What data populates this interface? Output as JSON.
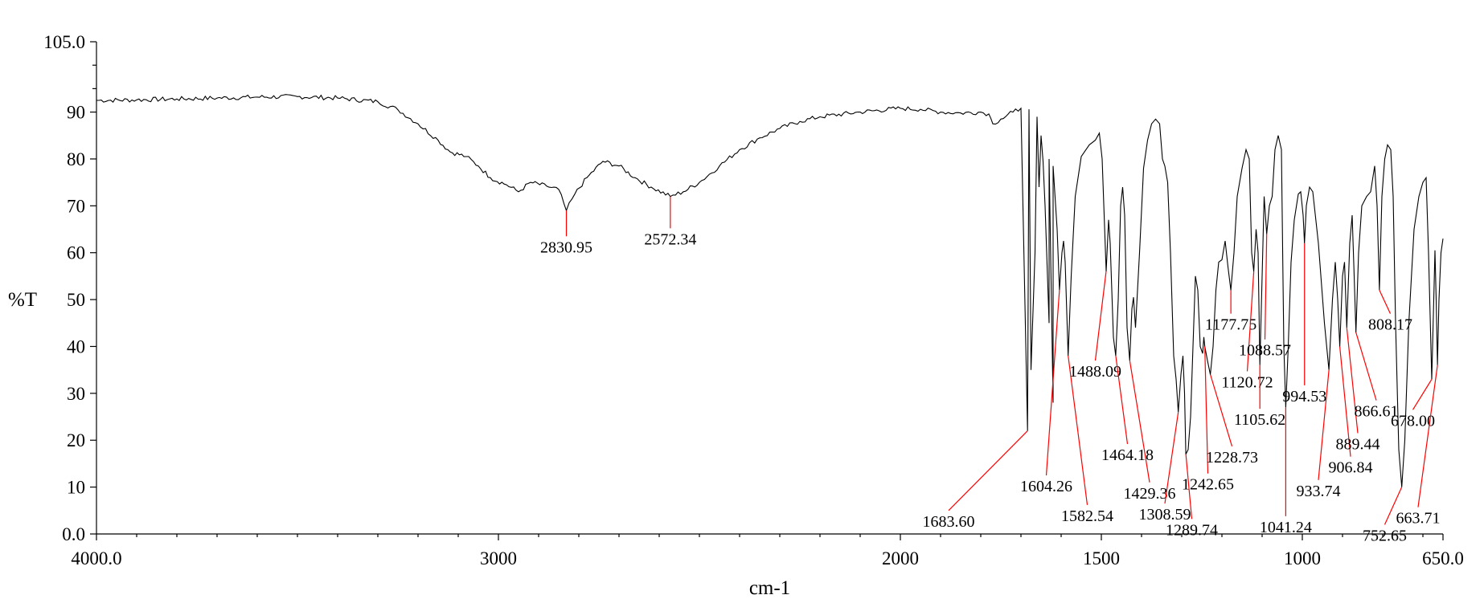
{
  "chart_data": {
    "type": "line",
    "xlabel": "cm-1",
    "ylabel": "%T",
    "xlim": [
      4000.0,
      650.0
    ],
    "ylim": [
      0.0,
      105.0
    ],
    "x_reversed": true,
    "grid": false,
    "x_ticks": [
      {
        "value": 4000,
        "label": "4000.0"
      },
      {
        "value": 3000,
        "label": "3000"
      },
      {
        "value": 2000,
        "label": "2000"
      },
      {
        "value": 1500,
        "label": "1500"
      },
      {
        "value": 1000,
        "label": "1000"
      },
      {
        "value": 650,
        "label": "650.0"
      }
    ],
    "y_ticks": [
      {
        "value": 0,
        "label": "0.0"
      },
      {
        "value": 10,
        "label": "10"
      },
      {
        "value": 20,
        "label": "20"
      },
      {
        "value": 30,
        "label": "30"
      },
      {
        "value": 40,
        "label": "40"
      },
      {
        "value": 50,
        "label": "50"
      },
      {
        "value": 60,
        "label": "60"
      },
      {
        "value": 70,
        "label": "70"
      },
      {
        "value": 80,
        "label": "80"
      },
      {
        "value": 90,
        "label": "90"
      },
      {
        "value": 105,
        "label": "105.0"
      }
    ],
    "colors": {
      "spectrum": "#000000",
      "annotation": "#ff0000"
    },
    "spectrum": [
      [
        4000,
        92.5
      ],
      [
        3900,
        92.6
      ],
      [
        3800,
        92.8
      ],
      [
        3700,
        93.0
      ],
      [
        3600,
        93.2
      ],
      [
        3500,
        93.3
      ],
      [
        3400,
        93.0
      ],
      [
        3300,
        92.2
      ],
      [
        3250,
        90.5
      ],
      [
        3200,
        87.5
      ],
      [
        3150,
        84.0
      ],
      [
        3120,
        81.5
      ],
      [
        3080,
        80.5
      ],
      [
        3050,
        78.5
      ],
      [
        3020,
        76.0
      ],
      [
        2980,
        74.5
      ],
      [
        2950,
        73.0
      ],
      [
        2920,
        75.0
      ],
      [
        2880,
        74.2
      ],
      [
        2850,
        73.5
      ],
      [
        2830.95,
        69.0
      ],
      [
        2810,
        72.5
      ],
      [
        2780,
        76.0
      ],
      [
        2740,
        79.5
      ],
      [
        2700,
        78.5
      ],
      [
        2660,
        76.0
      ],
      [
        2620,
        74.0
      ],
      [
        2572.34,
        72.0
      ],
      [
        2540,
        73.0
      ],
      [
        2500,
        75.0
      ],
      [
        2450,
        78.5
      ],
      [
        2400,
        82.0
      ],
      [
        2350,
        84.5
      ],
      [
        2300,
        86.5
      ],
      [
        2250,
        88.0
      ],
      [
        2200,
        89.0
      ],
      [
        2100,
        90.0
      ],
      [
        2000,
        90.8
      ],
      [
        1950,
        90.6
      ],
      [
        1900,
        90.0
      ],
      [
        1850,
        89.8
      ],
      [
        1800,
        90.0
      ],
      [
        1780,
        89.6
      ],
      [
        1770,
        87.5
      ],
      [
        1750,
        88.5
      ],
      [
        1720,
        90.0
      ],
      [
        1700,
        90.8
      ],
      [
        1680,
        90.6
      ],
      [
        1660,
        89.0
      ],
      [
        1650,
        85.0
      ],
      [
        1640,
        70.0
      ],
      [
        1630,
        45.0
      ],
      [
        1620,
        28.0
      ],
      [
        1683.6,
        22.0
      ]
    ],
    "spectrum_fingerprint": [
      [
        1683.6,
        22.0
      ],
      [
        1675,
        35.0
      ],
      [
        1665,
        60.0
      ],
      [
        1655,
        74.0
      ],
      [
        1645,
        79.5
      ],
      [
        1630,
        80.0
      ],
      [
        1620,
        78.5
      ],
      [
        1610,
        65.0
      ],
      [
        1604.26,
        52.0
      ],
      [
        1598,
        60.0
      ],
      [
        1594,
        62.5
      ],
      [
        1590,
        58.0
      ],
      [
        1582.54,
        38.0
      ],
      [
        1575,
        55.0
      ],
      [
        1565,
        72.0
      ],
      [
        1550,
        80.5
      ],
      [
        1530,
        83.0
      ],
      [
        1515,
        84.0
      ],
      [
        1505,
        85.5
      ],
      [
        1498,
        80.0
      ],
      [
        1488.09,
        56.0
      ],
      [
        1482,
        67.0
      ],
      [
        1478,
        62.0
      ],
      [
        1470,
        42.0
      ],
      [
        1464.18,
        38.0
      ],
      [
        1458,
        50.0
      ],
      [
        1452,
        70.0
      ],
      [
        1447,
        74.0
      ],
      [
        1442,
        68.0
      ],
      [
        1436,
        44.0
      ],
      [
        1429.36,
        37.0
      ],
      [
        1424,
        48.0
      ],
      [
        1420,
        50.5
      ],
      [
        1415,
        44.0
      ],
      [
        1405,
        60.0
      ],
      [
        1395,
        78.0
      ],
      [
        1385,
        84.0
      ],
      [
        1375,
        87.5
      ],
      [
        1365,
        88.5
      ],
      [
        1355,
        87.5
      ],
      [
        1348,
        80.0
      ],
      [
        1342,
        78.5
      ],
      [
        1335,
        75.0
      ],
      [
        1328,
        60.0
      ],
      [
        1320,
        38.0
      ],
      [
        1314,
        33.0
      ],
      [
        1308.59,
        26.0
      ],
      [
        1302,
        34.0
      ],
      [
        1297,
        38.0
      ],
      [
        1293,
        30.0
      ],
      [
        1289.74,
        17.0
      ],
      [
        1284,
        18.0
      ],
      [
        1278,
        25.0
      ],
      [
        1272,
        40.0
      ],
      [
        1266,
        55.0
      ],
      [
        1260,
        52.0
      ],
      [
        1254,
        40.0
      ],
      [
        1248,
        38.5
      ],
      [
        1245,
        42.0
      ],
      [
        1242.65,
        40.0
      ],
      [
        1236,
        37.0
      ],
      [
        1228.73,
        34.0
      ],
      [
        1222,
        40.0
      ],
      [
        1215,
        52.0
      ],
      [
        1208,
        58.0
      ],
      [
        1200,
        58.5
      ],
      [
        1192,
        62.5
      ],
      [
        1185,
        57.0
      ],
      [
        1177.75,
        52.0
      ],
      [
        1170,
        60.0
      ],
      [
        1162,
        72.0
      ],
      [
        1150,
        78.0
      ],
      [
        1140,
        82.0
      ],
      [
        1132,
        80.0
      ],
      [
        1126,
        60.0
      ],
      [
        1120.72,
        56.0
      ],
      [
        1115,
        65.0
      ],
      [
        1110,
        60.0
      ],
      [
        1105.62,
        36.0
      ],
      [
        1100,
        55.0
      ],
      [
        1095,
        72.0
      ],
      [
        1088.57,
        64.0
      ],
      [
        1082,
        70.0
      ],
      [
        1075,
        72.0
      ],
      [
        1068,
        82.0
      ],
      [
        1060,
        85.0
      ],
      [
        1052,
        82.0
      ],
      [
        1046,
        40.0
      ],
      [
        1041.24,
        27.0
      ],
      [
        1035,
        40.0
      ],
      [
        1028,
        58.0
      ],
      [
        1020,
        67.0
      ],
      [
        1010,
        72.5
      ],
      [
        1004,
        73.0
      ],
      [
        998,
        68.0
      ],
      [
        994.53,
        62.0
      ],
      [
        990,
        70.0
      ],
      [
        982,
        74.0
      ],
      [
        974,
        73.0
      ],
      [
        960,
        62.0
      ],
      [
        945,
        45.0
      ],
      [
        933.74,
        35.0
      ],
      [
        925,
        50.0
      ],
      [
        918,
        58.0
      ],
      [
        912,
        50.0
      ],
      [
        906.84,
        40.0
      ],
      [
        900,
        55.0
      ],
      [
        895,
        58.0
      ],
      [
        889.44,
        44.0
      ],
      [
        882,
        62.0
      ],
      [
        876,
        68.0
      ],
      [
        871,
        55.0
      ],
      [
        866.61,
        43.0
      ],
      [
        860,
        60.0
      ],
      [
        852,
        70.0
      ],
      [
        840,
        72.0
      ],
      [
        830,
        73.0
      ],
      [
        820,
        78.5
      ],
      [
        814,
        70.0
      ],
      [
        808.17,
        52.0
      ],
      [
        802,
        72.0
      ],
      [
        795,
        80.0
      ],
      [
        788,
        83.0
      ],
      [
        780,
        82.0
      ],
      [
        774,
        72.0
      ],
      [
        768,
        45.0
      ],
      [
        760,
        18.0
      ],
      [
        752.65,
        10.0
      ],
      [
        745,
        20.0
      ],
      [
        735,
        45.0
      ],
      [
        722,
        65.0
      ],
      [
        710,
        72.0
      ],
      [
        700,
        75.0
      ],
      [
        692,
        76.0
      ],
      [
        686,
        60.0
      ],
      [
        678.0,
        33.0
      ],
      [
        673,
        50.0
      ],
      [
        670,
        60.5
      ],
      [
        667,
        50.0
      ],
      [
        663.71,
        36.0
      ],
      [
        660,
        50.0
      ],
      [
        655,
        60.0
      ],
      [
        650,
        63.0
      ]
    ],
    "peaks": [
      {
        "label": "2830.95",
        "x": 2830.95,
        "y": 69.0,
        "lx": 2830.95,
        "ly": 63.5
      },
      {
        "label": "2572.34",
        "x": 2572.34,
        "y": 72.0,
        "lx": 2572.34,
        "ly": 65.2
      },
      {
        "label": "1683.60",
        "x": 1683.6,
        "y": 22.0,
        "lx": 1880.0,
        "ly": 5.0
      },
      {
        "label": "1604.26",
        "x": 1604.26,
        "y": 52.0,
        "lx": 1637.0,
        "ly": 12.5
      },
      {
        "label": "1582.54",
        "x": 1582.54,
        "y": 38.0,
        "lx": 1535.0,
        "ly": 6.2
      },
      {
        "label": "1488.09",
        "x": 1488.09,
        "y": 56.0,
        "lx": 1515.0,
        "ly": 37.0
      },
      {
        "label": "1464.18",
        "x": 1464.18,
        "y": 38.0,
        "lx": 1435.0,
        "ly": 19.2
      },
      {
        "label": "1429.36",
        "x": 1429.36,
        "y": 37.0,
        "lx": 1380.0,
        "ly": 11.0
      },
      {
        "label": "1308.59",
        "x": 1308.59,
        "y": 26.0,
        "lx": 1342.0,
        "ly": 6.5
      },
      {
        "label": "1289.74",
        "x": 1289.74,
        "y": 17.0,
        "lx": 1275.0,
        "ly": 3.2
      },
      {
        "label": "1242.65",
        "x": 1242.65,
        "y": 40.0,
        "lx": 1235.0,
        "ly": 12.9
      },
      {
        "label": "1228.73",
        "x": 1228.73,
        "y": 34.0,
        "lx": 1175.0,
        "ly": 18.7
      },
      {
        "label": "1177.75",
        "x": 1177.75,
        "y": 52.0,
        "lx": 1177.75,
        "ly": 47.0
      },
      {
        "label": "1120.72",
        "x": 1120.72,
        "y": 56.0,
        "lx": 1137.0,
        "ly": 34.7
      },
      {
        "label": "1105.62",
        "x": 1105.62,
        "y": 36.0,
        "lx": 1105.62,
        "ly": 26.7
      },
      {
        "label": "1088.57",
        "x": 1088.57,
        "y": 64.0,
        "lx": 1093.0,
        "ly": 41.5
      },
      {
        "label": "1041.24",
        "x": 1041.24,
        "y": 27.0,
        "lx": 1041.24,
        "ly": 3.8
      },
      {
        "label": "994.53",
        "x": 994.53,
        "y": 62.0,
        "lx": 994.53,
        "ly": 31.7
      },
      {
        "label": "933.74",
        "x": 933.74,
        "y": 35.0,
        "lx": 960.0,
        "ly": 11.5
      },
      {
        "label": "906.84",
        "x": 906.84,
        "y": 40.0,
        "lx": 880.0,
        "ly": 16.5
      },
      {
        "label": "889.44",
        "x": 889.44,
        "y": 44.0,
        "lx": 862.0,
        "ly": 21.5
      },
      {
        "label": "866.61",
        "x": 866.61,
        "y": 43.0,
        "lx": 816.0,
        "ly": 28.5
      },
      {
        "label": "808.17",
        "x": 808.17,
        "y": 52.0,
        "lx": 781.0,
        "ly": 47.0
      },
      {
        "label": "752.65",
        "x": 752.65,
        "y": 10.0,
        "lx": 795.0,
        "ly": 2.0
      },
      {
        "label": "678.00",
        "x": 678.0,
        "y": 33.0,
        "lx": 725.0,
        "ly": 26.5
      },
      {
        "label": "663.71",
        "x": 663.71,
        "y": 36.0,
        "lx": 712.0,
        "ly": 5.7
      }
    ]
  }
}
